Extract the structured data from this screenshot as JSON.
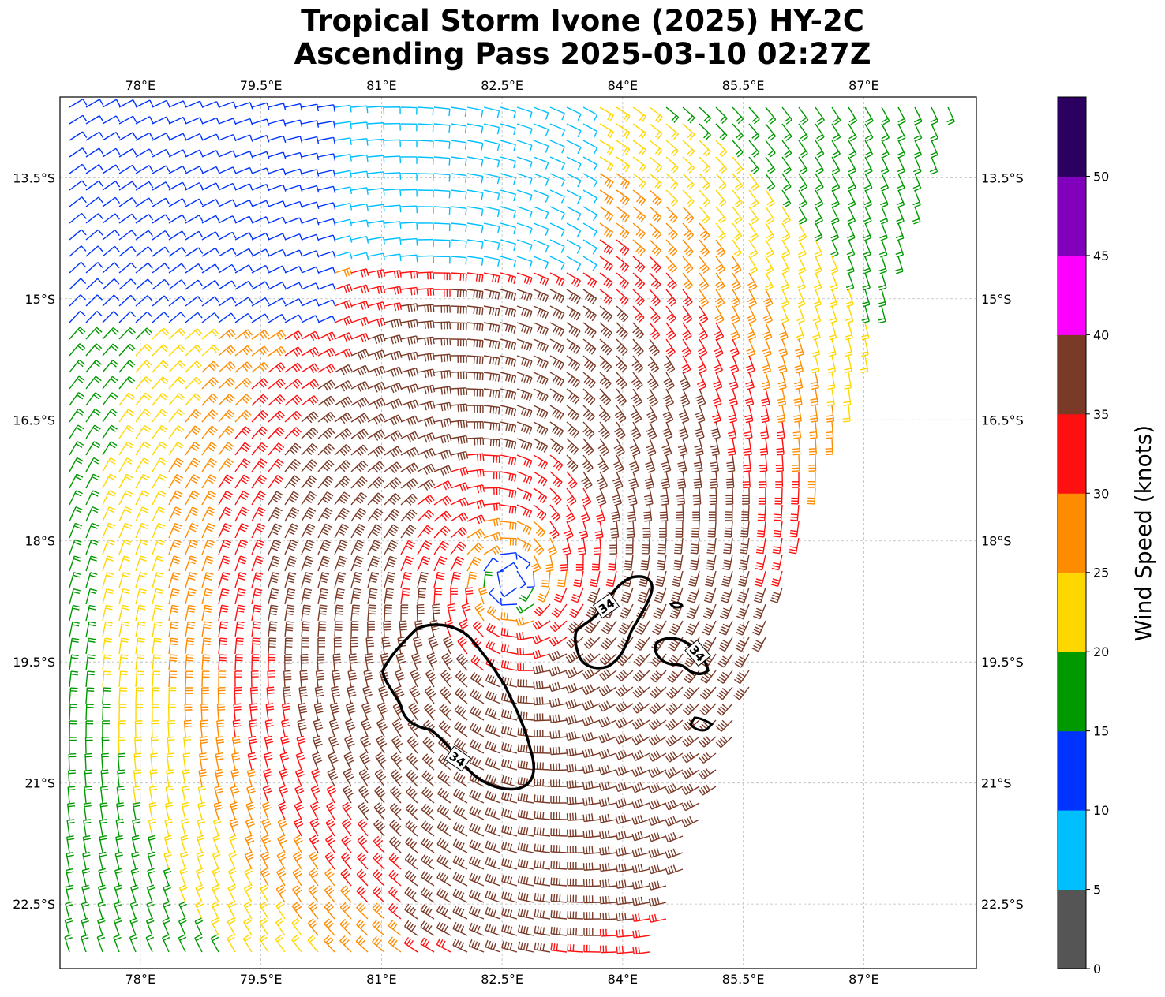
{
  "title_line1": "Tropical Storm Ivone (2025) HY-2C",
  "title_line2": "Ascending Pass 2025-03-10 02:27Z",
  "map": {
    "lon_range": [
      77.0,
      88.4
    ],
    "lat_range": [
      -12.5,
      -23.3
    ],
    "lon_ticks": [
      "78°E",
      "79.5°E",
      "81°E",
      "82.5°E",
      "84°E",
      "85.5°E",
      "87°E"
    ],
    "lon_tick_values": [
      78,
      79.5,
      81,
      82.5,
      84,
      85.5,
      87
    ],
    "lat_ticks": [
      "13.5°S",
      "15°S",
      "16.5°S",
      "18°S",
      "19.5°S",
      "21°S",
      "22.5°S"
    ],
    "lat_tick_values": [
      -13.5,
      -15,
      -16.5,
      -18,
      -19.5,
      -21,
      -22.5
    ],
    "gridlines": true,
    "storm_center": {
      "lon": 82.6,
      "lat": -18.5
    },
    "contour_label": "34",
    "contour_level_knots": 34
  },
  "colorbar": {
    "label": "Wind Speed (knots)",
    "ticks": [
      "0",
      "5",
      "10",
      "15",
      "20",
      "25",
      "30",
      "35",
      "40",
      "45",
      "50"
    ],
    "colors": [
      "#555555",
      "#00bfff",
      "#0033ff",
      "#009900",
      "#ffd700",
      "#ff8c00",
      "#ff1010",
      "#7a3a28",
      "#ff00ff",
      "#8000bb",
      "#2c0060"
    ]
  }
}
